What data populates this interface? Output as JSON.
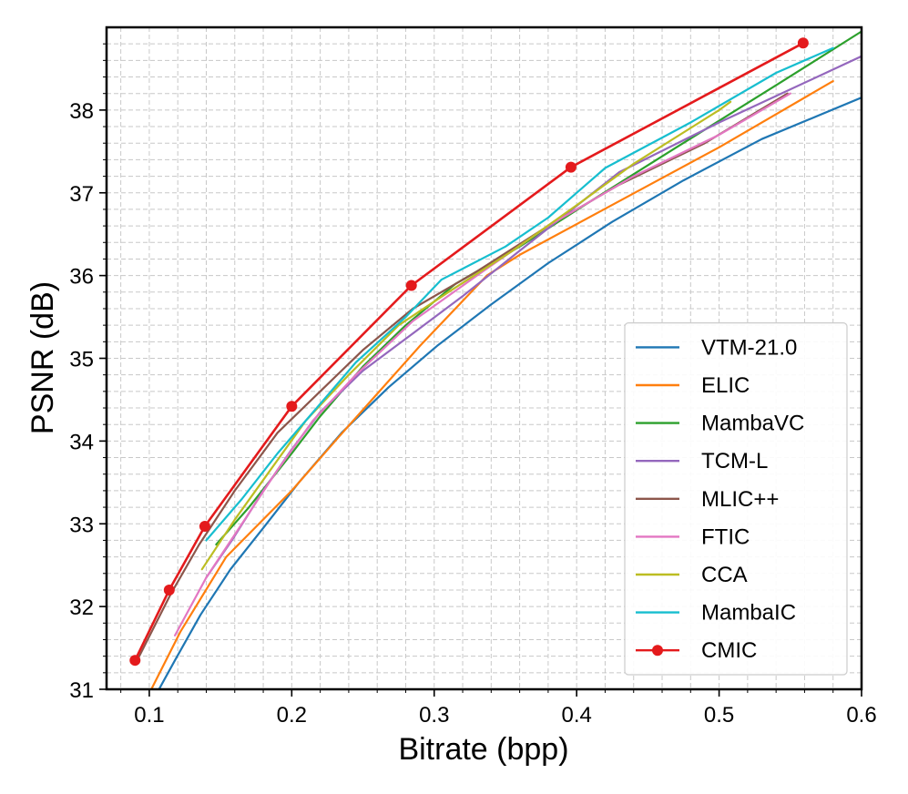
{
  "chart_data": {
    "type": "line",
    "title": "",
    "xlabel": "Bitrate (bpp)",
    "ylabel": "PSNR (dB)",
    "xlim": [
      0.07,
      0.6
    ],
    "ylim": [
      31.0,
      39.0
    ],
    "xticks": [
      0.1,
      0.2,
      0.3,
      0.4,
      0.5,
      0.6
    ],
    "xtick_labels": [
      "0.1",
      "0.2",
      "0.3",
      "0.4",
      "0.5",
      "0.6"
    ],
    "yticks": [
      31,
      32,
      33,
      34,
      35,
      36,
      37,
      38
    ],
    "ytick_labels": [
      "31",
      "32",
      "33",
      "34",
      "35",
      "36",
      "37",
      "38"
    ],
    "grid": true,
    "minor_grid": true,
    "legend_position": "lower-right",
    "series": [
      {
        "name": "VTM-21.0",
        "color": "#1f77b4",
        "marker": "none",
        "x": [
          0.102,
          0.118,
          0.136,
          0.157,
          0.18,
          0.205,
          0.235,
          0.268,
          0.302,
          0.34,
          0.38,
          0.425,
          0.475,
          0.53,
          0.6
        ],
        "y": [
          30.85,
          31.35,
          31.9,
          32.45,
          32.95,
          33.5,
          34.1,
          34.65,
          35.15,
          35.65,
          36.15,
          36.65,
          37.15,
          37.65,
          38.15
        ]
      },
      {
        "name": "ELIC",
        "color": "#ff7f0e",
        "marker": "none",
        "x": [
          0.1,
          0.122,
          0.154,
          0.2,
          0.233,
          0.29,
          0.337,
          0.36,
          0.43,
          0.5,
          0.58
        ],
        "y": [
          30.95,
          31.7,
          32.6,
          33.4,
          34.05,
          35.15,
          36.0,
          36.25,
          36.9,
          37.55,
          38.35
        ]
      },
      {
        "name": "MambaVC",
        "color": "#2ca02c",
        "marker": "none",
        "x": [
          0.147,
          0.17,
          0.2,
          0.22,
          0.25,
          0.28,
          0.315,
          0.36,
          0.41,
          0.47,
          0.54,
          0.6
        ],
        "y": [
          32.75,
          33.2,
          33.85,
          34.3,
          34.9,
          35.4,
          35.9,
          36.35,
          36.9,
          37.55,
          38.3,
          38.95
        ]
      },
      {
        "name": "TCM-L",
        "color": "#9467bd",
        "marker": "none",
        "x": [
          0.14,
          0.158,
          0.18,
          0.2,
          0.22,
          0.25,
          0.285,
          0.32,
          0.36,
          0.43,
          0.5,
          0.6
        ],
        "y": [
          32.35,
          32.8,
          33.4,
          33.9,
          34.35,
          34.85,
          35.3,
          35.75,
          36.3,
          37.25,
          37.85,
          38.65
        ]
      },
      {
        "name": "MLIC++",
        "color": "#8c564b",
        "marker": "none",
        "x": [
          0.09,
          0.115,
          0.135,
          0.16,
          0.19,
          0.22,
          0.25,
          0.285,
          0.33,
          0.38,
          0.43,
          0.49,
          0.548
        ],
        "y": [
          31.3,
          32.15,
          32.75,
          33.4,
          34.1,
          34.6,
          35.1,
          35.6,
          36.05,
          36.6,
          37.1,
          37.6,
          38.2
        ]
      },
      {
        "name": "FTIC",
        "color": "#e377c2",
        "marker": "none",
        "x": [
          0.118,
          0.14,
          0.165,
          0.19,
          0.215,
          0.245,
          0.285,
          0.33,
          0.38,
          0.44,
          0.5,
          0.55
        ],
        "y": [
          31.65,
          32.35,
          33.0,
          33.65,
          34.25,
          34.8,
          35.45,
          36.0,
          36.6,
          37.2,
          37.7,
          38.2
        ]
      },
      {
        "name": "CCA",
        "color": "#bcbd22",
        "marker": "none",
        "x": [
          0.137,
          0.16,
          0.185,
          0.21,
          0.24,
          0.275,
          0.31,
          0.355,
          0.4,
          0.44,
          0.5,
          0.508
        ],
        "y": [
          32.45,
          33.05,
          33.65,
          34.25,
          34.8,
          35.4,
          35.8,
          36.3,
          36.85,
          37.35,
          38.0,
          38.1
        ]
      },
      {
        "name": "MambaIC",
        "color": "#17becf",
        "marker": "none",
        "x": [
          0.14,
          0.165,
          0.19,
          0.215,
          0.245,
          0.28,
          0.305,
          0.35,
          0.38,
          0.42,
          0.48,
          0.54,
          0.58
        ],
        "y": [
          32.8,
          33.3,
          33.85,
          34.35,
          34.95,
          35.5,
          35.95,
          36.35,
          36.7,
          37.3,
          37.85,
          38.45,
          38.75
        ]
      },
      {
        "name": "CMIC",
        "color": "#e41a1c",
        "marker": "circle",
        "x": [
          0.09,
          0.114,
          0.139,
          0.2,
          0.284,
          0.396,
          0.559
        ],
        "y": [
          31.35,
          32.2,
          32.97,
          34.42,
          35.88,
          37.31,
          38.81
        ]
      }
    ]
  }
}
